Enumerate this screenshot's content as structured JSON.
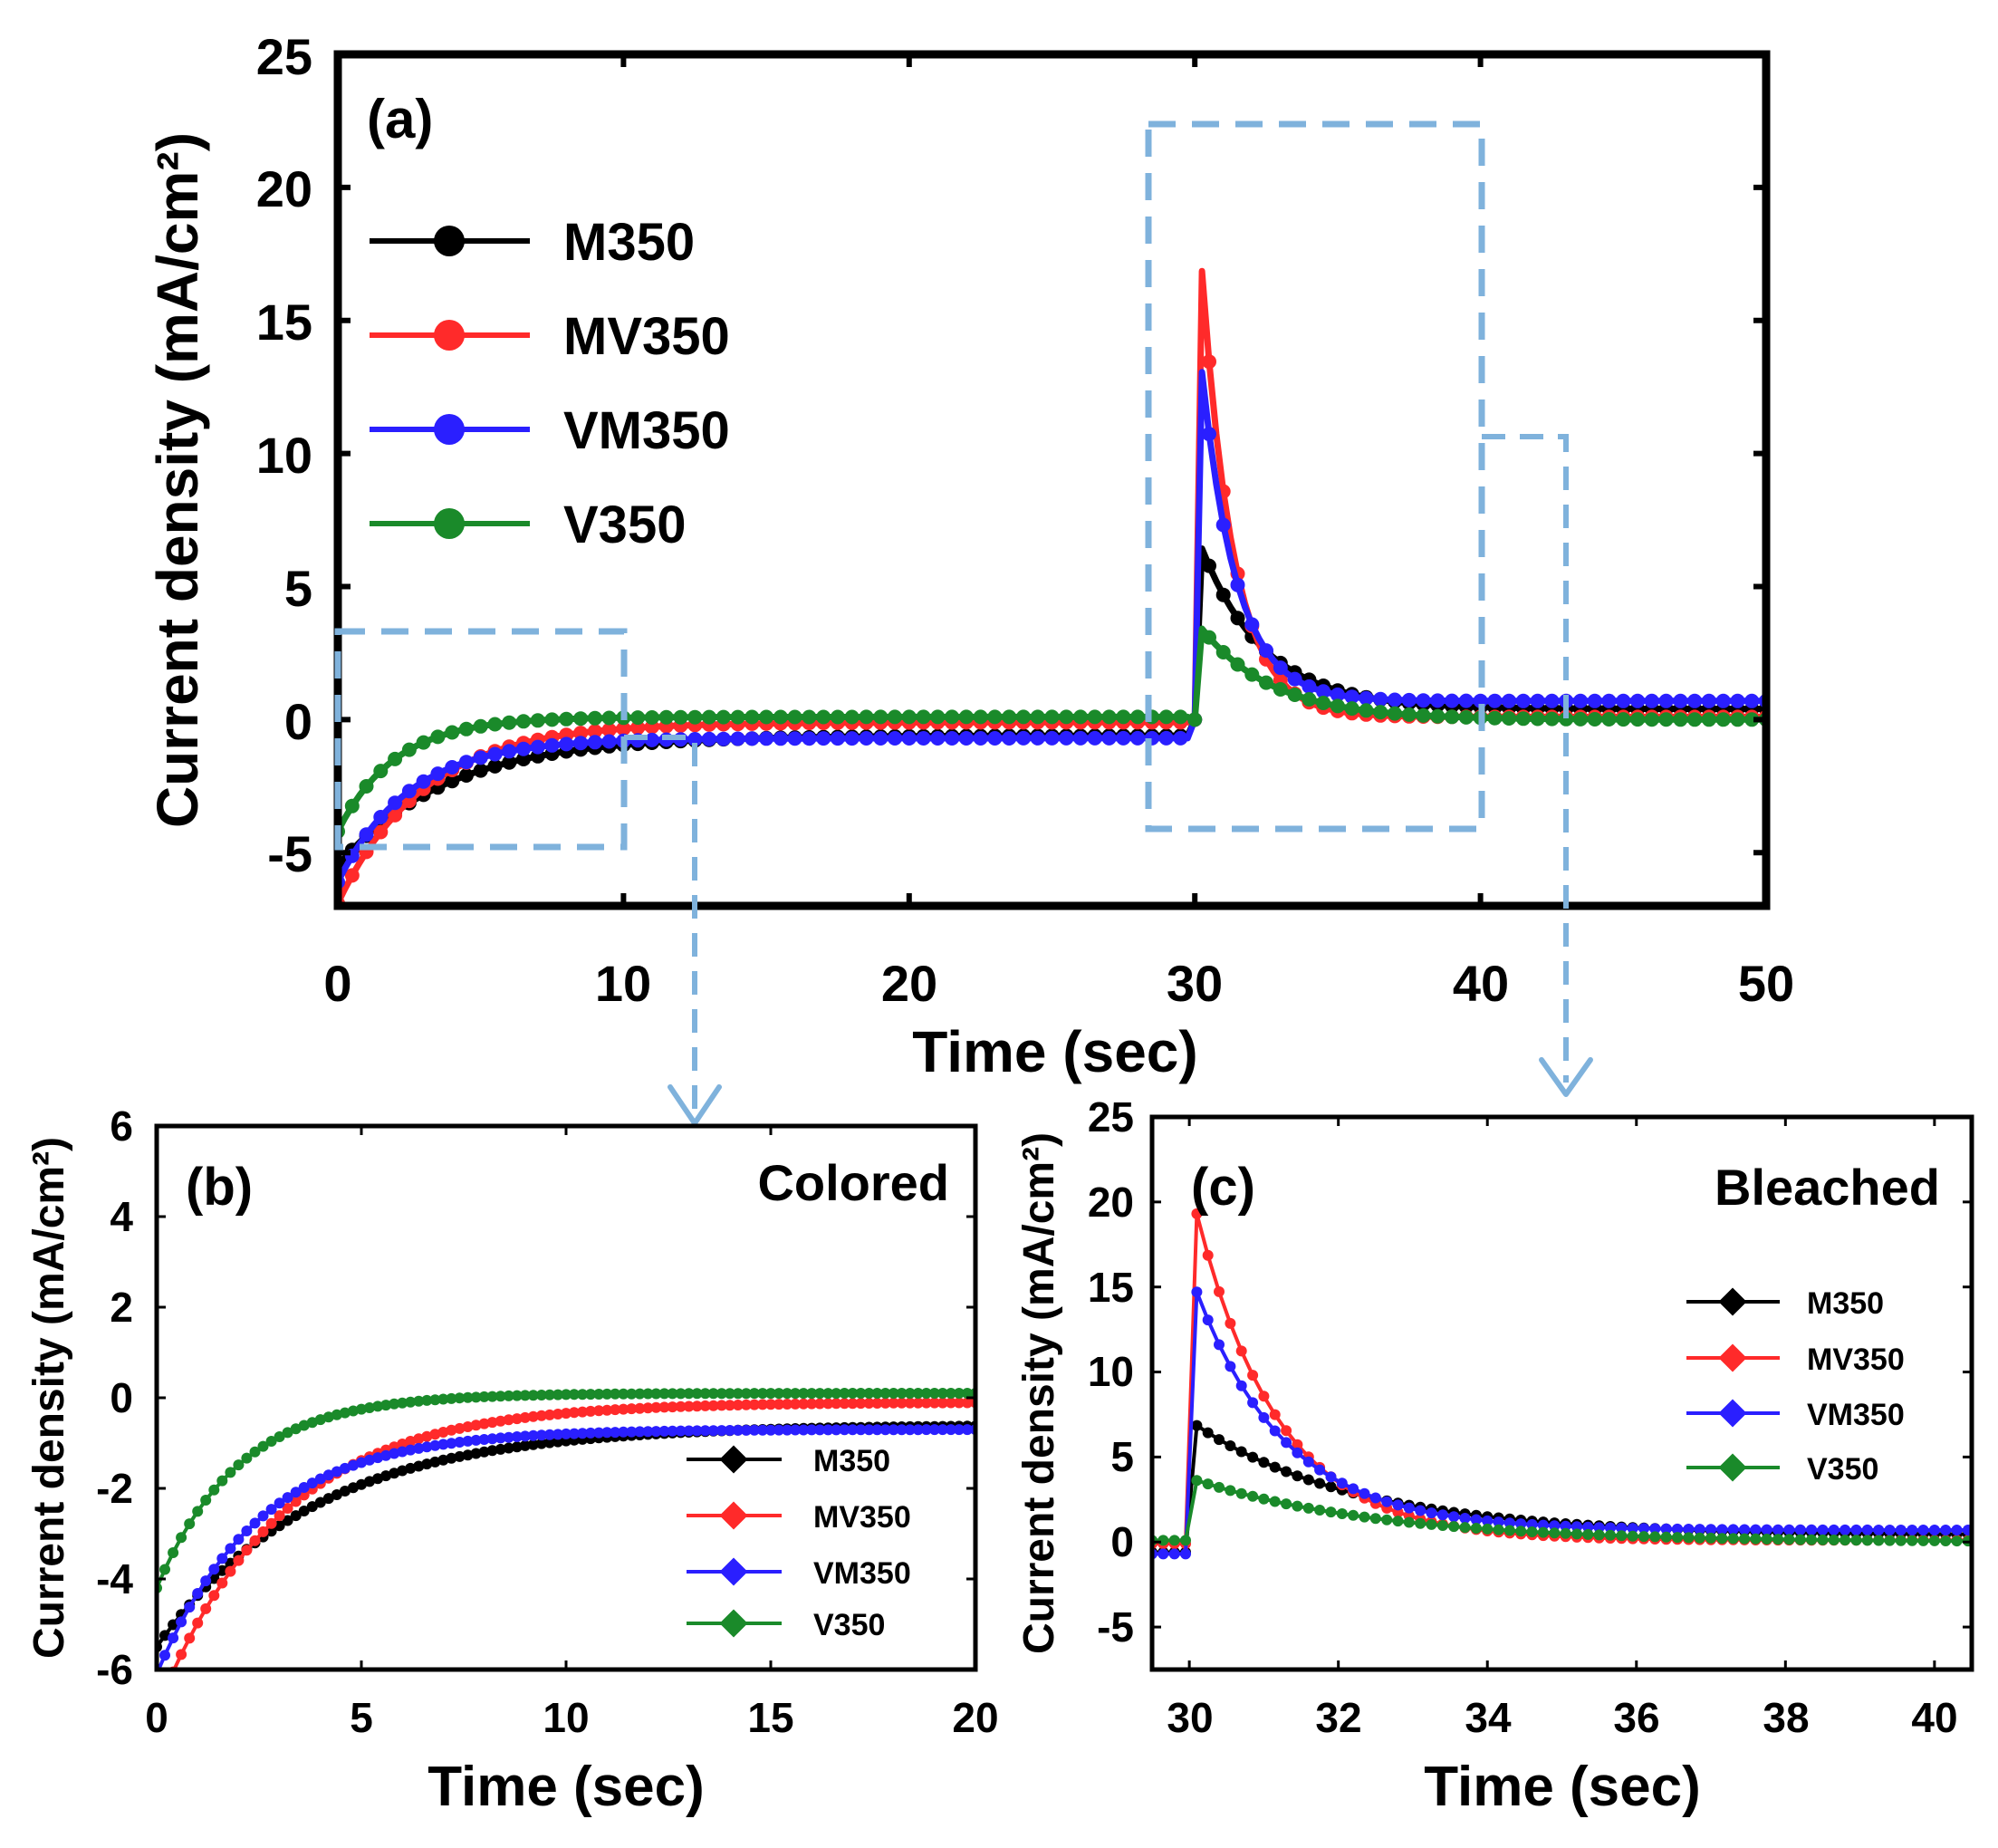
{
  "chart_data": [
    {
      "id": "a",
      "type": "line",
      "panel_label": "(a)",
      "xlabel": "Time (sec)",
      "ylabel": "Current density (mA/cm²)",
      "xlim": [
        0,
        50
      ],
      "ylim": [
        -7,
        25
      ],
      "xticks": [
        "0",
        "10",
        "20",
        "30",
        "40",
        "50"
      ],
      "yticks": [
        "-5",
        "0",
        "5",
        "10",
        "15",
        "20",
        "25"
      ],
      "legend": [
        "M350",
        "MV350",
        "VM350",
        "V350"
      ],
      "legend_position": "upper-left",
      "zoom_boxes": [
        {
          "x": [
            0,
            10
          ],
          "y": [
            -4.7,
            3.4
          ],
          "target": "b"
        },
        {
          "x": [
            28.5,
            40
          ],
          "y": [
            -4.1,
            22.4
          ],
          "target": "c"
        }
      ],
      "series": [
        {
          "name": "M350",
          "color": "#000000",
          "colored": {
            "start": -5.5,
            "end": -0.6,
            "tau": 3.8
          },
          "bleached": {
            "peak": 7.0,
            "base": 0.4,
            "tau": 2.2
          }
        },
        {
          "name": "MV350",
          "color": "#ff2a2a",
          "colored": {
            "start": -6.9,
            "end": -0.1,
            "tau": 3.0
          },
          "bleached": {
            "peak": 20.2,
            "base": 0.1,
            "tau": 1.1
          }
        },
        {
          "name": "VM350",
          "color": "#2a1fff",
          "colored": {
            "start": -6.1,
            "end": -0.7,
            "tau": 2.5
          },
          "bleached": {
            "peak": 15.3,
            "base": 0.7,
            "tau": 1.2
          }
        },
        {
          "name": "V350",
          "color": "#1a8a2a",
          "colored": {
            "start": -4.2,
            "end": 0.1,
            "tau": 2.0
          },
          "bleached": {
            "peak": 3.7,
            "base": 0.0,
            "tau": 2.5
          }
        }
      ]
    },
    {
      "id": "b",
      "type": "line",
      "panel_label": "(b)",
      "annotation": "Colored",
      "xlabel": "Time (sec)",
      "ylabel": "Current density (mA/cm²)",
      "xlim": [
        0,
        20
      ],
      "ylim": [
        -6,
        6
      ],
      "xticks": [
        "0",
        "5",
        "10",
        "15",
        "20"
      ],
      "yticks": [
        "-6",
        "-4",
        "-2",
        "0",
        "2",
        "4",
        "6"
      ],
      "legend": [
        "M350",
        "MV350",
        "VM350",
        "V350"
      ],
      "legend_position": "lower-right"
    },
    {
      "id": "c",
      "type": "line",
      "panel_label": "(c)",
      "annotation": "Bleached",
      "xlabel": "Time (sec)",
      "ylabel": "Current density (mA/cm²)",
      "xlim": [
        29.5,
        40.5
      ],
      "ylim": [
        -7.5,
        25
      ],
      "xticks": [
        "30",
        "32",
        "34",
        "36",
        "38",
        "40"
      ],
      "yticks": [
        "-5",
        "0",
        "5",
        "10",
        "15",
        "20",
        "25"
      ],
      "legend": [
        "M350",
        "MV350",
        "VM350",
        "V350"
      ],
      "legend_position": "right"
    }
  ]
}
